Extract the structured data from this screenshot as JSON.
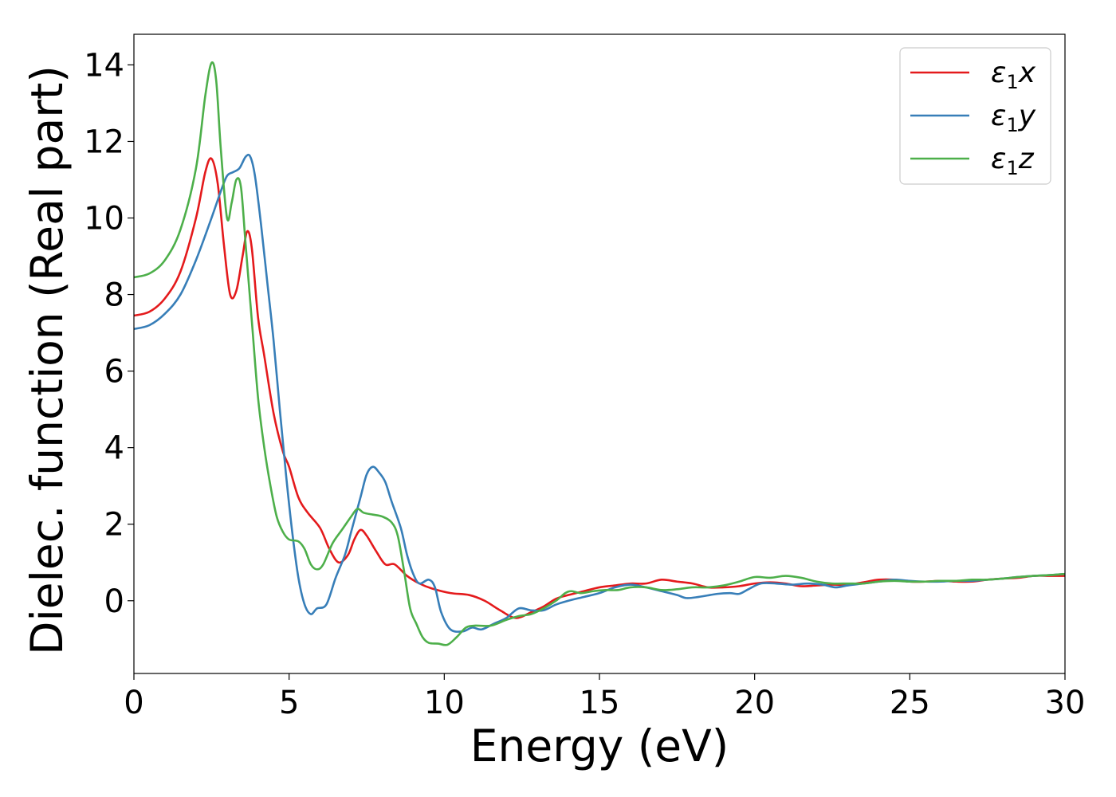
{
  "chart_data": {
    "type": "line",
    "xlabel": "Energy (eV)",
    "ylabel": "Dielec. function (Real part)",
    "xlim": [
      0,
      30
    ],
    "ylim": [
      -1.9,
      14.8
    ],
    "xticks": [
      0,
      5,
      10,
      15,
      20,
      25,
      30
    ],
    "yticks": [
      0,
      2,
      4,
      6,
      8,
      10,
      12,
      14
    ],
    "grid": false,
    "legend_position": "top-right",
    "series": [
      {
        "name": "ε1x",
        "label_base": "ε",
        "label_sub": "1",
        "label_var": "x",
        "color": "#e41a1c",
        "points": [
          [
            0,
            7.45
          ],
          [
            0.5,
            7.55
          ],
          [
            1.0,
            7.9
          ],
          [
            1.5,
            8.6
          ],
          [
            2.0,
            10.0
          ],
          [
            2.3,
            11.2
          ],
          [
            2.5,
            11.55
          ],
          [
            2.7,
            10.9
          ],
          [
            2.9,
            9.3
          ],
          [
            3.1,
            8.0
          ],
          [
            3.3,
            8.1
          ],
          [
            3.5,
            9.0
          ],
          [
            3.65,
            9.65
          ],
          [
            3.8,
            9.2
          ],
          [
            4.0,
            7.4
          ],
          [
            4.2,
            6.4
          ],
          [
            4.5,
            4.9
          ],
          [
            4.8,
            3.9
          ],
          [
            5.0,
            3.5
          ],
          [
            5.3,
            2.7
          ],
          [
            5.6,
            2.3
          ],
          [
            6.0,
            1.9
          ],
          [
            6.3,
            1.35
          ],
          [
            6.6,
            1.0
          ],
          [
            6.9,
            1.2
          ],
          [
            7.1,
            1.6
          ],
          [
            7.3,
            1.85
          ],
          [
            7.5,
            1.7
          ],
          [
            7.8,
            1.3
          ],
          [
            8.1,
            0.95
          ],
          [
            8.4,
            0.95
          ],
          [
            8.8,
            0.65
          ],
          [
            9.2,
            0.45
          ],
          [
            9.6,
            0.32
          ],
          [
            10.2,
            0.2
          ],
          [
            10.8,
            0.15
          ],
          [
            11.3,
            0.0
          ],
          [
            11.8,
            -0.25
          ],
          [
            12.3,
            -0.45
          ],
          [
            12.8,
            -0.3
          ],
          [
            13.2,
            -0.15
          ],
          [
            13.6,
            0.05
          ],
          [
            14.0,
            0.15
          ],
          [
            14.5,
            0.25
          ],
          [
            15.0,
            0.35
          ],
          [
            15.5,
            0.4
          ],
          [
            16.0,
            0.45
          ],
          [
            16.5,
            0.45
          ],
          [
            17.0,
            0.55
          ],
          [
            17.5,
            0.5
          ],
          [
            18.0,
            0.45
          ],
          [
            18.5,
            0.35
          ],
          [
            19.0,
            0.35
          ],
          [
            19.5,
            0.38
          ],
          [
            20.0,
            0.45
          ],
          [
            20.5,
            0.48
          ],
          [
            21.0,
            0.45
          ],
          [
            21.5,
            0.38
          ],
          [
            22.0,
            0.4
          ],
          [
            22.5,
            0.42
          ],
          [
            23.0,
            0.42
          ],
          [
            23.5,
            0.48
          ],
          [
            24.0,
            0.55
          ],
          [
            24.5,
            0.55
          ],
          [
            25.0,
            0.5
          ],
          [
            25.5,
            0.5
          ],
          [
            26.0,
            0.52
          ],
          [
            26.5,
            0.5
          ],
          [
            27.0,
            0.5
          ],
          [
            27.5,
            0.55
          ],
          [
            28.0,
            0.58
          ],
          [
            28.5,
            0.6
          ],
          [
            29.0,
            0.65
          ],
          [
            29.5,
            0.65
          ],
          [
            30.0,
            0.65
          ]
        ]
      },
      {
        "name": "ε1y",
        "label_base": "ε",
        "label_sub": "1",
        "label_var": "y",
        "color": "#377eb8",
        "points": [
          [
            0,
            7.1
          ],
          [
            0.5,
            7.2
          ],
          [
            1.0,
            7.5
          ],
          [
            1.5,
            8.0
          ],
          [
            2.0,
            8.9
          ],
          [
            2.5,
            10.0
          ],
          [
            2.8,
            10.7
          ],
          [
            3.0,
            11.1
          ],
          [
            3.2,
            11.2
          ],
          [
            3.4,
            11.3
          ],
          [
            3.6,
            11.6
          ],
          [
            3.75,
            11.6
          ],
          [
            3.9,
            11.1
          ],
          [
            4.1,
            9.8
          ],
          [
            4.3,
            8.3
          ],
          [
            4.5,
            6.8
          ],
          [
            4.7,
            5.0
          ],
          [
            4.9,
            3.3
          ],
          [
            5.1,
            1.8
          ],
          [
            5.3,
            0.6
          ],
          [
            5.5,
            -0.1
          ],
          [
            5.7,
            -0.35
          ],
          [
            5.9,
            -0.2
          ],
          [
            6.2,
            -0.1
          ],
          [
            6.5,
            0.6
          ],
          [
            6.8,
            1.2
          ],
          [
            7.0,
            1.8
          ],
          [
            7.3,
            2.7
          ],
          [
            7.5,
            3.3
          ],
          [
            7.7,
            3.5
          ],
          [
            7.9,
            3.35
          ],
          [
            8.1,
            3.1
          ],
          [
            8.3,
            2.6
          ],
          [
            8.6,
            1.9
          ],
          [
            8.8,
            1.2
          ],
          [
            9.0,
            0.7
          ],
          [
            9.2,
            0.45
          ],
          [
            9.5,
            0.55
          ],
          [
            9.7,
            0.35
          ],
          [
            9.9,
            -0.3
          ],
          [
            10.2,
            -0.75
          ],
          [
            10.6,
            -0.8
          ],
          [
            10.9,
            -0.7
          ],
          [
            11.2,
            -0.75
          ],
          [
            11.6,
            -0.6
          ],
          [
            12.0,
            -0.45
          ],
          [
            12.4,
            -0.2
          ],
          [
            12.8,
            -0.25
          ],
          [
            13.2,
            -0.25
          ],
          [
            13.6,
            -0.1
          ],
          [
            14.0,
            0.0
          ],
          [
            14.5,
            0.1
          ],
          [
            15.0,
            0.2
          ],
          [
            15.5,
            0.35
          ],
          [
            16.0,
            0.42
          ],
          [
            16.5,
            0.35
          ],
          [
            17.0,
            0.25
          ],
          [
            17.5,
            0.15
          ],
          [
            17.8,
            0.07
          ],
          [
            18.2,
            0.1
          ],
          [
            18.8,
            0.18
          ],
          [
            19.2,
            0.2
          ],
          [
            19.5,
            0.18
          ],
          [
            19.8,
            0.3
          ],
          [
            20.2,
            0.45
          ],
          [
            20.7,
            0.45
          ],
          [
            21.2,
            0.42
          ],
          [
            21.7,
            0.45
          ],
          [
            22.2,
            0.42
          ],
          [
            22.6,
            0.35
          ],
          [
            23.0,
            0.4
          ],
          [
            23.5,
            0.45
          ],
          [
            24.0,
            0.5
          ],
          [
            24.5,
            0.55
          ],
          [
            25.0,
            0.52
          ],
          [
            25.5,
            0.5
          ],
          [
            26.0,
            0.5
          ],
          [
            26.5,
            0.52
          ],
          [
            27.0,
            0.52
          ],
          [
            27.5,
            0.55
          ],
          [
            28.0,
            0.58
          ],
          [
            28.5,
            0.62
          ],
          [
            29.0,
            0.65
          ],
          [
            29.5,
            0.67
          ],
          [
            30.0,
            0.7
          ]
        ]
      },
      {
        "name": "ε1z",
        "label_base": "ε",
        "label_sub": "1",
        "label_var": "z",
        "color": "#4daf4a",
        "points": [
          [
            0,
            8.45
          ],
          [
            0.5,
            8.55
          ],
          [
            1.0,
            8.9
          ],
          [
            1.5,
            9.7
          ],
          [
            2.0,
            11.3
          ],
          [
            2.3,
            13.2
          ],
          [
            2.5,
            14.05
          ],
          [
            2.65,
            13.6
          ],
          [
            2.8,
            11.8
          ],
          [
            3.0,
            10.0
          ],
          [
            3.15,
            10.4
          ],
          [
            3.3,
            11.0
          ],
          [
            3.45,
            10.8
          ],
          [
            3.6,
            9.3
          ],
          [
            3.8,
            7.3
          ],
          [
            4.0,
            5.3
          ],
          [
            4.2,
            4.0
          ],
          [
            4.4,
            3.0
          ],
          [
            4.6,
            2.2
          ],
          [
            4.8,
            1.8
          ],
          [
            5.0,
            1.6
          ],
          [
            5.3,
            1.55
          ],
          [
            5.5,
            1.35
          ],
          [
            5.7,
            0.95
          ],
          [
            5.9,
            0.82
          ],
          [
            6.1,
            0.95
          ],
          [
            6.4,
            1.5
          ],
          [
            6.7,
            1.85
          ],
          [
            7.0,
            2.2
          ],
          [
            7.2,
            2.4
          ],
          [
            7.4,
            2.3
          ],
          [
            7.7,
            2.25
          ],
          [
            8.0,
            2.2
          ],
          [
            8.3,
            2.05
          ],
          [
            8.5,
            1.7
          ],
          [
            8.7,
            0.8
          ],
          [
            8.9,
            -0.2
          ],
          [
            9.1,
            -0.6
          ],
          [
            9.3,
            -0.95
          ],
          [
            9.5,
            -1.1
          ],
          [
            9.8,
            -1.12
          ],
          [
            10.1,
            -1.15
          ],
          [
            10.4,
            -0.95
          ],
          [
            10.7,
            -0.7
          ],
          [
            11.0,
            -0.65
          ],
          [
            11.5,
            -0.65
          ],
          [
            12.0,
            -0.5
          ],
          [
            12.4,
            -0.4
          ],
          [
            12.8,
            -0.35
          ],
          [
            13.2,
            -0.2
          ],
          [
            13.6,
            0.0
          ],
          [
            13.9,
            0.2
          ],
          [
            14.1,
            0.25
          ],
          [
            14.4,
            0.2
          ],
          [
            14.8,
            0.25
          ],
          [
            15.2,
            0.28
          ],
          [
            15.6,
            0.28
          ],
          [
            16.0,
            0.35
          ],
          [
            16.5,
            0.35
          ],
          [
            17.0,
            0.28
          ],
          [
            17.5,
            0.3
          ],
          [
            18.0,
            0.35
          ],
          [
            18.5,
            0.35
          ],
          [
            19.0,
            0.4
          ],
          [
            19.5,
            0.5
          ],
          [
            20.0,
            0.62
          ],
          [
            20.5,
            0.6
          ],
          [
            21.0,
            0.65
          ],
          [
            21.5,
            0.6
          ],
          [
            22.0,
            0.5
          ],
          [
            22.5,
            0.45
          ],
          [
            23.0,
            0.45
          ],
          [
            23.5,
            0.45
          ],
          [
            24.0,
            0.5
          ],
          [
            24.5,
            0.52
          ],
          [
            25.0,
            0.5
          ],
          [
            25.5,
            0.5
          ],
          [
            26.0,
            0.52
          ],
          [
            26.5,
            0.52
          ],
          [
            27.0,
            0.55
          ],
          [
            27.5,
            0.55
          ],
          [
            28.0,
            0.58
          ],
          [
            28.5,
            0.62
          ],
          [
            29.0,
            0.65
          ],
          [
            29.5,
            0.67
          ],
          [
            30.0,
            0.7
          ]
        ]
      }
    ]
  }
}
